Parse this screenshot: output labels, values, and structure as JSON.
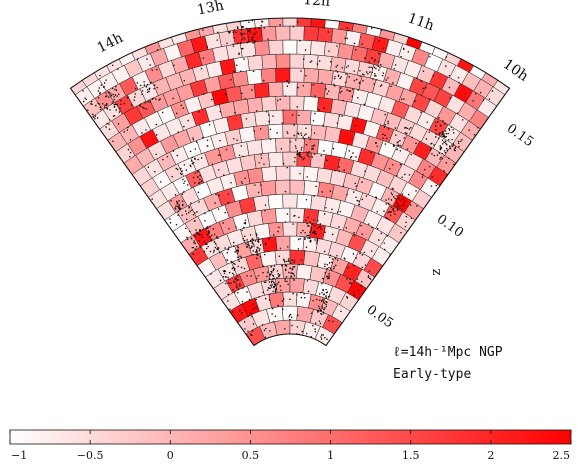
{
  "chart_data": {
    "type": "heatmap",
    "projection": "wedge",
    "ra_tick_labels": [
      "14h",
      "13h",
      "12h",
      "11h",
      "10h"
    ],
    "ra_ticks_hours": [
      14,
      13,
      12,
      11,
      10
    ],
    "ra_range_hours": [
      9.95,
      14.55
    ],
    "redshift_tick_labels": [
      "0.05",
      "0.10",
      "0.15"
    ],
    "redshift_ticks": [
      0.05,
      0.1,
      0.15
    ],
    "redshift_range": [
      0.0,
      0.165
    ],
    "axis_label_z": "z",
    "annotation_line1": "ℓ=14h⁻¹Mpc NGP",
    "annotation_line2": "Early-type",
    "colorbar": {
      "min": -1,
      "max": 2.5,
      "ticks": [
        -1,
        -0.5,
        0,
        0.5,
        1,
        1.5,
        2,
        2.5
      ],
      "tick_labels": [
        "−1",
        "−0.5",
        "0",
        "0.5",
        "1",
        "1.5",
        "2",
        "2.5"
      ],
      "color_low": "#ffffff",
      "color_high": "#ff0000"
    },
    "cell_size_mpc_over_h": 14,
    "inner_redshift_edge": 0.02
  }
}
